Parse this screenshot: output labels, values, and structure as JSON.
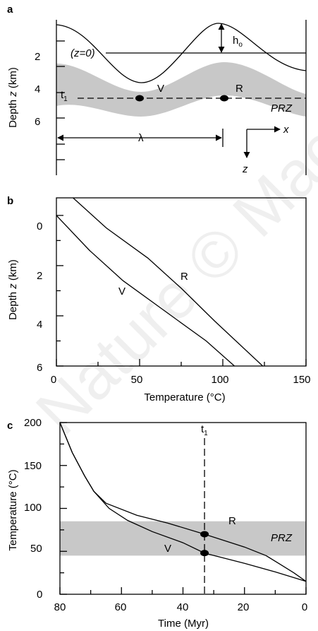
{
  "panel_a": {
    "letter": "a",
    "ylabel_main": "Depth ",
    "ylabel_var": "z",
    "ylabel_unit": " (km)",
    "yticks": [
      "2",
      "4",
      "6"
    ],
    "labels": {
      "z0": "(z=0)",
      "ho": "h",
      "ho_sub": "o",
      "t1": "t",
      "t1_sub": "1",
      "V": "V",
      "R": "R",
      "PRZ": "PRZ",
      "lambda": "λ",
      "x": "x",
      "z": "z"
    }
  },
  "panel_b": {
    "letter": "b",
    "ylabel_main": "Depth ",
    "ylabel_var": "z",
    "ylabel_unit": " (km)",
    "xlabel": "Temperature (°C)",
    "yticks": [
      "0",
      "2",
      "4",
      "6"
    ],
    "xticks": [
      "0",
      "50",
      "100",
      "150"
    ],
    "labels": {
      "R": "R",
      "V": "V"
    }
  },
  "panel_c": {
    "letter": "c",
    "ylabel": "Temperature (°C)",
    "xlabel": "Time (Myr)",
    "yticks": [
      "0",
      "50",
      "100",
      "150",
      "200"
    ],
    "xticks": [
      "80",
      "60",
      "40",
      "20",
      "0"
    ],
    "labels": {
      "t1": "t",
      "t1_sub": "1",
      "R": "R",
      "V": "V",
      "PRZ": "PRZ"
    }
  },
  "watermark": "Nature © Macmillan",
  "chart_data": [
    {
      "type": "line",
      "panel": "b",
      "xlabel": "Temperature (°C)",
      "ylabel": "Depth z (km)",
      "xlim": [
        0,
        150
      ],
      "ylim": [
        6,
        -0.7
      ],
      "grid": false,
      "series": [
        {
          "name": "R",
          "points": [
            [
              10,
              -0.7
            ],
            [
              30,
              0.5
            ],
            [
              55,
              1.7
            ],
            [
              75,
              2.9
            ],
            [
              95,
              4.2
            ],
            [
              124,
              6.0
            ]
          ]
        },
        {
          "name": "V",
          "points": [
            [
              0,
              0
            ],
            [
              20,
              1.4
            ],
            [
              40,
              2.6
            ],
            [
              65,
              3.8
            ],
            [
              90,
              5.0
            ],
            [
              107,
              6.0
            ]
          ]
        }
      ]
    },
    {
      "type": "line",
      "panel": "c",
      "xlabel": "Time (Myr)",
      "ylabel": "Temperature (°C)",
      "xlim": [
        80,
        0
      ],
      "ylim": [
        0,
        200
      ],
      "grid": false,
      "vertical_line": {
        "x": 33,
        "label": "t1"
      },
      "band": {
        "y0": 45,
        "y1": 85,
        "label": "PRZ"
      },
      "series": [
        {
          "name": "R",
          "points": [
            [
              80,
              200
            ],
            [
              76,
              165
            ],
            [
              72,
              138
            ],
            [
              69,
              120
            ],
            [
              65,
              106
            ],
            [
              55,
              92
            ],
            [
              45,
              83
            ],
            [
              33,
              70
            ],
            [
              20,
              55
            ],
            [
              13,
              45
            ],
            [
              8,
              34
            ],
            [
              4,
              25
            ],
            [
              0,
              15
            ]
          ]
        },
        {
          "name": "V",
          "points": [
            [
              80,
              200
            ],
            [
              76,
              165
            ],
            [
              72,
              138
            ],
            [
              69,
              120
            ],
            [
              64,
              100
            ],
            [
              58,
              86
            ],
            [
              50,
              73
            ],
            [
              40,
              60
            ],
            [
              33,
              48
            ],
            [
              20,
              36
            ],
            [
              10,
              26
            ],
            [
              0,
              15
            ]
          ]
        }
      ],
      "markers": [
        {
          "series": "R",
          "x": 33,
          "y": 70
        },
        {
          "series": "V",
          "x": 33,
          "y": 48
        }
      ]
    }
  ]
}
